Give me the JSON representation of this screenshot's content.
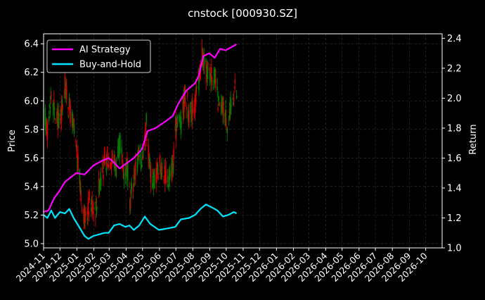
{
  "chart_data": {
    "type": "line",
    "title": "cnstock [000930.SZ]",
    "ylabel": "Price",
    "ylabel_right": "Return",
    "ylim": [
      4.97,
      6.47
    ],
    "ylim_right": [
      1.0,
      2.43
    ],
    "yticks": [
      "5.0",
      "5.2",
      "5.4",
      "5.6",
      "5.8",
      "6.0",
      "6.2",
      "6.4"
    ],
    "yticks_right": [
      "1.0",
      "1.2",
      "1.4",
      "1.6",
      "1.8",
      "2.0",
      "2.2",
      "2.4"
    ],
    "x_range": [
      "2024-11-01",
      "2026-10-31"
    ],
    "x_ticks": [
      "2024-11",
      "2024-12",
      "2025-01",
      "2025-02",
      "2025-03",
      "2025-04",
      "2025-05",
      "2025-06",
      "2025-07",
      "2025-08",
      "2025-09",
      "2025-10",
      "2025-11",
      "2025-12",
      "2026-01",
      "2026-02",
      "2026-03",
      "2026-04",
      "2026-05",
      "2026-06",
      "2026-07",
      "2026-08",
      "2026-09",
      "2026-10"
    ],
    "grid": true,
    "legend_position": "top-left",
    "colors": {
      "up": "#d40000",
      "down": "#007a00",
      "ai": "#ff00ff",
      "bh": "#00e5ff",
      "grid": "#3a3a3a",
      "text": "#ffffff"
    },
    "candle_price_path": [
      [
        "2024-11-01",
        5.95
      ],
      [
        "2024-11-08",
        5.8
      ],
      [
        "2024-11-15",
        6.05
      ],
      [
        "2024-11-22",
        5.9
      ],
      [
        "2024-12-01",
        5.85
      ],
      [
        "2024-12-10",
        6.1
      ],
      [
        "2024-12-18",
        5.95
      ],
      [
        "2024-12-26",
        5.8
      ],
      [
        "2025-01-03",
        5.55
      ],
      [
        "2025-01-10",
        5.3
      ],
      [
        "2025-01-17",
        5.15
      ],
      [
        "2025-01-24",
        5.3
      ],
      [
        "2025-02-05",
        5.25
      ],
      [
        "2025-02-12",
        5.45
      ],
      [
        "2025-02-20",
        5.55
      ],
      [
        "2025-02-28",
        5.6
      ],
      [
        "2025-03-07",
        5.6
      ],
      [
        "2025-03-14",
        5.55
      ],
      [
        "2025-03-21",
        5.7
      ],
      [
        "2025-03-28",
        5.5
      ],
      [
        "2025-04-03",
        5.55
      ],
      [
        "2025-04-08",
        5.3
      ],
      [
        "2025-04-15",
        5.45
      ],
      [
        "2025-04-22",
        5.6
      ],
      [
        "2025-04-30",
        5.6
      ],
      [
        "2025-05-08",
        5.85
      ],
      [
        "2025-05-15",
        5.5
      ],
      [
        "2025-05-22",
        5.45
      ],
      [
        "2025-06-01",
        5.55
      ],
      [
        "2025-06-10",
        5.5
      ],
      [
        "2025-06-18",
        5.45
      ],
      [
        "2025-06-26",
        5.55
      ],
      [
        "2025-07-03",
        5.9
      ],
      [
        "2025-07-10",
        5.85
      ],
      [
        "2025-07-18",
        6.05
      ],
      [
        "2025-07-26",
        5.9
      ],
      [
        "2025-08-03",
        5.95
      ],
      [
        "2025-08-10",
        6.1
      ],
      [
        "2025-08-18",
        6.3
      ],
      [
        "2025-08-26",
        6.2
      ],
      [
        "2025-09-03",
        6.2
      ],
      [
        "2025-09-10",
        6.15
      ],
      [
        "2025-09-18",
        5.95
      ],
      [
        "2025-09-26",
        5.95
      ],
      [
        "2025-10-03",
        5.85
      ],
      [
        "2025-10-10",
        5.95
      ],
      [
        "2025-10-16",
        6.1
      ],
      [
        "2025-10-20",
        6.05
      ]
    ],
    "series": [
      {
        "name": "AI Strategy",
        "points": [
          [
            "2024-11-01",
            1.24
          ],
          [
            "2024-11-10",
            1.25
          ],
          [
            "2024-11-20",
            1.33
          ],
          [
            "2024-11-30",
            1.38
          ],
          [
            "2024-12-10",
            1.44
          ],
          [
            "2024-12-20",
            1.47
          ],
          [
            "2024-12-31",
            1.5
          ],
          [
            "2025-01-15",
            1.49
          ],
          [
            "2025-01-31",
            1.55
          ],
          [
            "2025-02-15",
            1.58
          ],
          [
            "2025-02-28",
            1.6
          ],
          [
            "2025-03-10",
            1.57
          ],
          [
            "2025-03-20",
            1.53
          ],
          [
            "2025-03-31",
            1.56
          ],
          [
            "2025-04-15",
            1.6
          ],
          [
            "2025-04-30",
            1.66
          ],
          [
            "2025-05-10",
            1.78
          ],
          [
            "2025-05-25",
            1.8
          ],
          [
            "2025-06-10",
            1.84
          ],
          [
            "2025-06-25",
            1.88
          ],
          [
            "2025-07-05",
            1.96
          ],
          [
            "2025-07-20",
            2.05
          ],
          [
            "2025-08-05",
            2.1
          ],
          [
            "2025-08-12",
            2.15
          ],
          [
            "2025-08-20",
            2.28
          ],
          [
            "2025-08-31",
            2.3
          ],
          [
            "2025-09-10",
            2.27
          ],
          [
            "2025-09-20",
            2.33
          ],
          [
            "2025-09-30",
            2.32
          ],
          [
            "2025-10-10",
            2.34
          ],
          [
            "2025-10-20",
            2.36
          ]
        ]
      },
      {
        "name": "Buy-and-Hold",
        "points": [
          [
            "2024-11-01",
            1.22
          ],
          [
            "2024-11-08",
            1.2
          ],
          [
            "2024-11-15",
            1.25
          ],
          [
            "2024-11-22",
            1.2
          ],
          [
            "2024-12-01",
            1.24
          ],
          [
            "2024-12-10",
            1.23
          ],
          [
            "2024-12-18",
            1.26
          ],
          [
            "2024-12-26",
            1.2
          ],
          [
            "2025-01-05",
            1.14
          ],
          [
            "2025-01-15",
            1.08
          ],
          [
            "2025-01-22",
            1.06
          ],
          [
            "2025-01-31",
            1.08
          ],
          [
            "2025-02-10",
            1.09
          ],
          [
            "2025-02-20",
            1.1
          ],
          [
            "2025-02-28",
            1.1
          ],
          [
            "2025-03-10",
            1.15
          ],
          [
            "2025-03-20",
            1.16
          ],
          [
            "2025-03-31",
            1.14
          ],
          [
            "2025-04-07",
            1.15
          ],
          [
            "2025-04-15",
            1.12
          ],
          [
            "2025-04-25",
            1.15
          ],
          [
            "2025-05-05",
            1.21
          ],
          [
            "2025-05-15",
            1.16
          ],
          [
            "2025-05-31",
            1.12
          ],
          [
            "2025-06-15",
            1.13
          ],
          [
            "2025-06-30",
            1.14
          ],
          [
            "2025-07-10",
            1.19
          ],
          [
            "2025-07-25",
            1.2
          ],
          [
            "2025-08-05",
            1.22
          ],
          [
            "2025-08-15",
            1.26
          ],
          [
            "2025-08-25",
            1.29
          ],
          [
            "2025-09-05",
            1.27
          ],
          [
            "2025-09-15",
            1.25
          ],
          [
            "2025-09-25",
            1.21
          ],
          [
            "2025-10-05",
            1.22
          ],
          [
            "2025-10-15",
            1.24
          ],
          [
            "2025-10-20",
            1.23
          ]
        ]
      }
    ]
  }
}
